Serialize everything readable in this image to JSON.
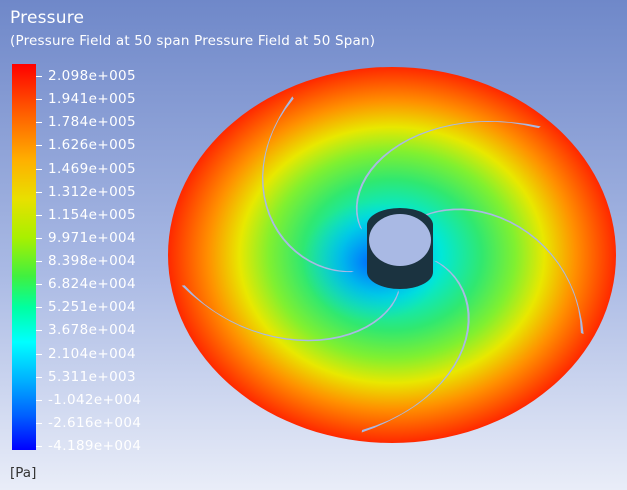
{
  "plot": {
    "title": "Pressure",
    "subtitle": "(Pressure Field at 50 span Pressure Field at 50 Span)",
    "unit": "[Pa]"
  },
  "legend": {
    "labels": [
      "2.098e+005",
      "1.941e+005",
      "1.784e+005",
      "1.626e+005",
      "1.469e+005",
      "1.312e+005",
      "1.154e+005",
      "9.971e+004",
      "8.398e+004",
      "6.824e+004",
      "5.251e+004",
      "3.678e+004",
      "2.104e+004",
      "5.311e+003",
      "-1.042e+004",
      "-2.616e+004",
      "-4.189e+004"
    ]
  },
  "colors": {
    "background_top": "#6f88c9",
    "background_bottom": "#e9edf8",
    "blade": "#a9b9e4",
    "hub": "#1b3340",
    "max": "#ff0000",
    "min": "#0000ff"
  },
  "model": {
    "blade_count": 5
  }
}
